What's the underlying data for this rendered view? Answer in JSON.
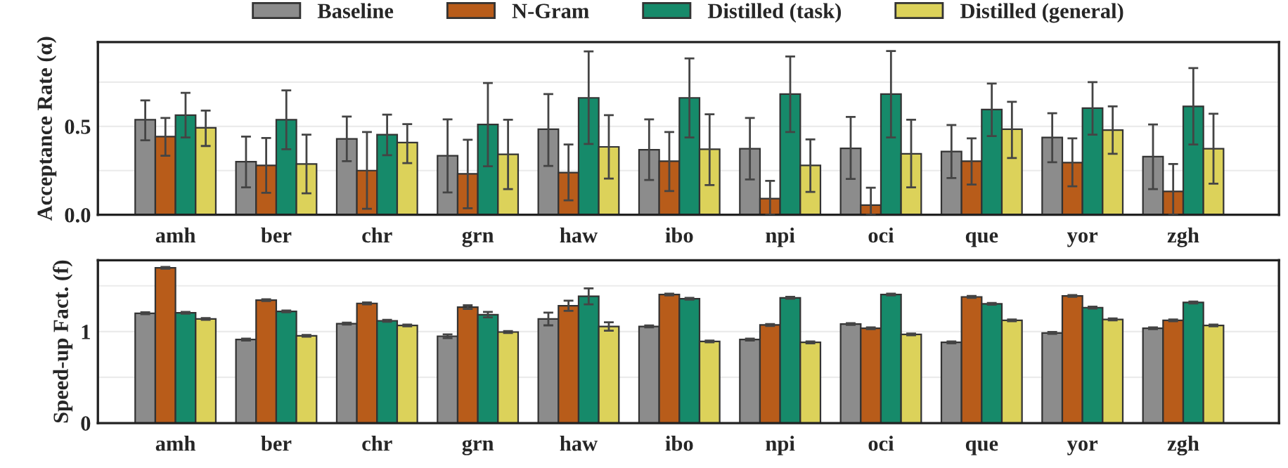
{
  "chart_data": [
    {
      "type": "bar",
      "ylabel": "Acceptance Rate (α)",
      "categories": [
        "amh",
        "ber",
        "chr",
        "grn",
        "haw",
        "ibo",
        "npi",
        "oci",
        "que",
        "yor",
        "zgh"
      ],
      "ylim": [
        0,
        0.976
      ],
      "yticks": [
        {
          "value": 0,
          "label": "0.0"
        },
        {
          "value": 0.25,
          "label": null
        },
        0.5,
        {
          "value": 0.75,
          "label": null
        }
      ],
      "grid": "y",
      "legend": "top",
      "series": [
        {
          "name": "Baseline",
          "color": "#8c8c8c",
          "values": [
            0.537,
            0.3,
            0.429,
            0.334,
            0.484,
            0.368,
            0.374,
            0.376,
            0.358,
            0.437,
            0.329
          ],
          "errors": [
            [
              0.421,
              0.647
            ],
            [
              0.155,
              0.442
            ],
            [
              0.303,
              0.555
            ],
            [
              0.126,
              0.539
            ],
            [
              0.276,
              0.682
            ],
            [
              0.197,
              0.539
            ],
            [
              0.2,
              0.547
            ],
            [
              0.203,
              0.553
            ],
            [
              0.208,
              0.508
            ],
            [
              0.297,
              0.574
            ],
            [
              0.145,
              0.511
            ]
          ]
        },
        {
          "name": "N-Gram",
          "color": "#b85c1a",
          "values": [
            0.442,
            0.279,
            0.25,
            0.232,
            0.239,
            0.303,
            0.092,
            0.055,
            0.303,
            0.295,
            0.132
          ],
          "errors": [
            [
              0.334,
              0.547
            ],
            [
              0.124,
              0.434
            ],
            [
              0.034,
              0.468
            ],
            [
              0.037,
              0.424
            ],
            [
              0.082,
              0.397
            ],
            [
              0.134,
              0.468
            ],
            [
              0,
              0.192
            ],
            [
              0,
              0.153
            ],
            [
              0.171,
              0.432
            ],
            [
              0.161,
              0.432
            ],
            [
              0,
              0.287
            ]
          ]
        },
        {
          "name": "Distilled (task)",
          "color": "#168a6a",
          "values": [
            0.563,
            0.537,
            0.453,
            0.511,
            0.661,
            0.661,
            0.682,
            0.682,
            0.595,
            0.603,
            0.613
          ],
          "errors": [
            [
              0.437,
              0.689
            ],
            [
              0.371,
              0.703
            ],
            [
              0.337,
              0.566
            ],
            [
              0.274,
              0.745
            ],
            [
              0.4,
              0.924
            ],
            [
              0.437,
              0.884
            ],
            [
              0.468,
              0.895
            ],
            [
              0.437,
              0.926
            ],
            [
              0.445,
              0.742
            ],
            [
              0.453,
              0.75
            ],
            [
              0.397,
              0.829
            ]
          ]
        },
        {
          "name": "Distilled (general)",
          "color": "#dcd25a",
          "values": [
            0.492,
            0.287,
            0.408,
            0.342,
            0.384,
            0.371,
            0.279,
            0.345,
            0.484,
            0.479,
            0.374
          ],
          "errors": [
            [
              0.389,
              0.589
            ],
            [
              0.121,
              0.453
            ],
            [
              0.292,
              0.513
            ],
            [
              0.145,
              0.537
            ],
            [
              0.205,
              0.563
            ],
            [
              0.168,
              0.568
            ],
            [
              0.129,
              0.426
            ],
            [
              0.155,
              0.537
            ],
            [
              0.321,
              0.639
            ],
            [
              0.345,
              0.613
            ],
            [
              0.176,
              0.571
            ]
          ]
        }
      ]
    },
    {
      "type": "bar",
      "ylabel": "Speed-up Fact. (f)",
      "categories": [
        "amh",
        "ber",
        "chr",
        "grn",
        "haw",
        "ibo",
        "npi",
        "oci",
        "que",
        "yor",
        "zgh"
      ],
      "ylim": [
        0,
        1.78
      ],
      "yticks": [
        0,
        {
          "value": 0.5,
          "label": null
        },
        1,
        {
          "value": 1.5,
          "label": null
        }
      ],
      "grid": "y",
      "series": [
        {
          "color": "#8c8c8c",
          "values": [
            1.2,
            0.913,
            1.087,
            0.949,
            1.138,
            1.056,
            0.913,
            1.082,
            0.882,
            0.985,
            1.036
          ],
          "errors": [
            0.01,
            0.01,
            0.01,
            0.02,
            0.07,
            0.01,
            0.01,
            0.01,
            0.01,
            0.01,
            0.01
          ]
        },
        {
          "color": "#b85c1a",
          "values": [
            1.697,
            1.344,
            1.308,
            1.267,
            1.282,
            1.405,
            1.072,
            1.036,
            1.379,
            1.39,
            1.123
          ],
          "errors": [
            0.01,
            0.01,
            0.01,
            0.02,
            0.056,
            0.01,
            0.01,
            0.01,
            0.01,
            0.01,
            0.01
          ]
        },
        {
          "color": "#168a6a",
          "values": [
            1.205,
            1.221,
            1.118,
            1.185,
            1.385,
            1.359,
            1.369,
            1.405,
            1.303,
            1.262,
            1.318
          ],
          "errors": [
            0.01,
            0.01,
            0.01,
            0.03,
            0.087,
            0.01,
            0.01,
            0.01,
            0.01,
            0.01,
            0.01
          ]
        },
        {
          "color": "#dcd25a",
          "values": [
            1.138,
            0.954,
            1.067,
            0.995,
            1.056,
            0.892,
            0.882,
            0.969,
            1.123,
            1.133,
            1.067
          ],
          "errors": [
            0.01,
            0.01,
            0.01,
            0.01,
            0.046,
            0.01,
            0.01,
            0.01,
            0.01,
            0.01,
            0.01
          ]
        }
      ]
    }
  ]
}
